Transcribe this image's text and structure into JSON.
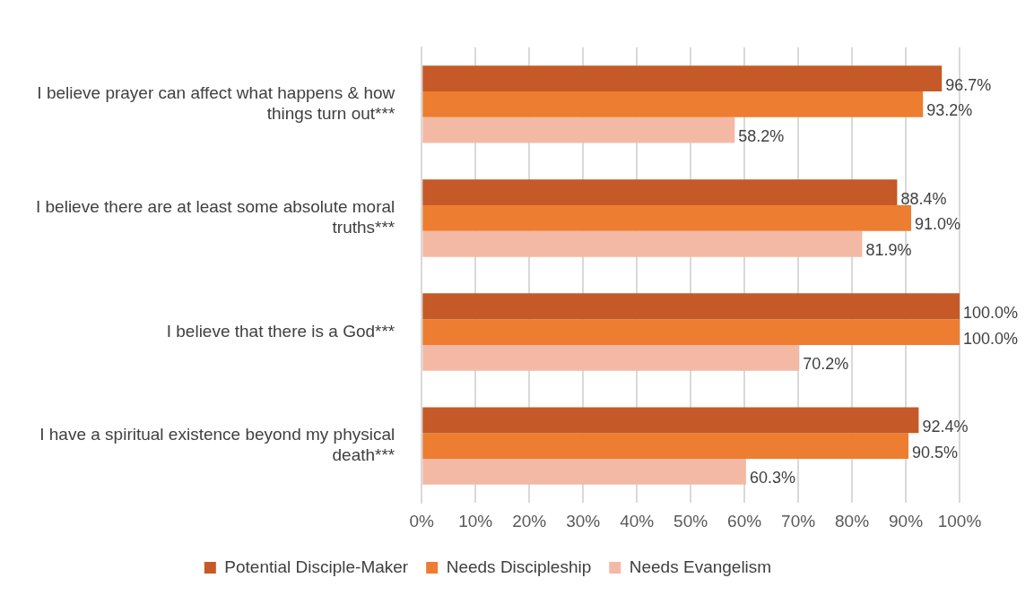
{
  "chart_data": {
    "type": "bar",
    "orientation": "horizontal",
    "categories": [
      "I believe prayer can affect what happens & how things turn out***",
      "I believe there are at least some absolute moral truths***",
      "I believe that there is a God***",
      "I have a spiritual existence beyond my physical death***"
    ],
    "series": [
      {
        "name": "Potential Disciple-Maker",
        "color": "#c55a28",
        "values": [
          96.7,
          88.4,
          100.0,
          92.4
        ]
      },
      {
        "name": "Needs Discipleship",
        "color": "#ed7d31",
        "values": [
          93.2,
          91.0,
          100.0,
          90.5
        ]
      },
      {
        "name": "Needs Evangelism",
        "color": "#f4b9a5",
        "values": [
          58.2,
          81.9,
          70.2,
          60.3
        ]
      }
    ],
    "xlim": [
      0,
      100
    ],
    "xticks": [
      {
        "value": 0,
        "label": "0%"
      },
      {
        "value": 10,
        "label": "10%"
      },
      {
        "value": 20,
        "label": "20%"
      },
      {
        "value": 30,
        "label": "30%"
      },
      {
        "value": 40,
        "label": "40%"
      },
      {
        "value": 50,
        "label": "50%"
      },
      {
        "value": 60,
        "label": "60%"
      },
      {
        "value": 70,
        "label": "70%"
      },
      {
        "value": 80,
        "label": "80%"
      },
      {
        "value": 90,
        "label": "90%"
      },
      {
        "value": 100,
        "label": "100%"
      }
    ],
    "value_labels": [
      [
        "96.7%",
        "88.4%",
        "100.0%",
        "92.4%"
      ],
      [
        "93.2%",
        "91.0%",
        "100.0%",
        "90.5%"
      ],
      [
        "58.2%",
        "81.9%",
        "70.2%",
        "60.3%"
      ]
    ],
    "grid": "x",
    "legend": "bottom"
  }
}
